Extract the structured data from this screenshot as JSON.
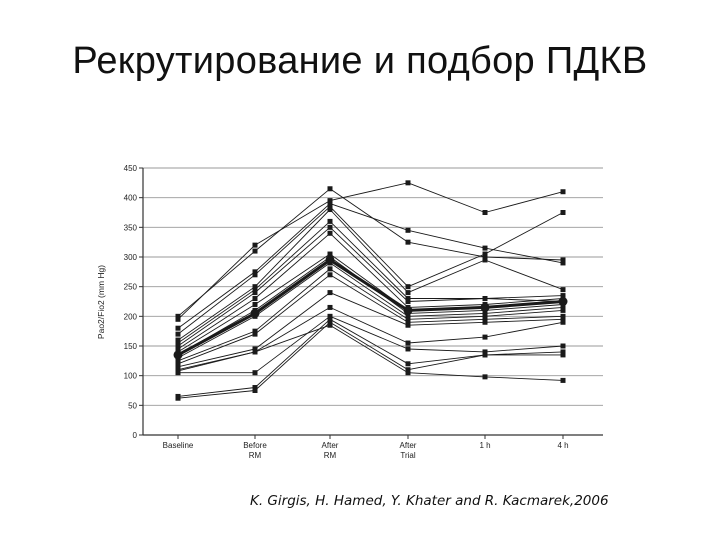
{
  "slide": {
    "title": "Рекрутирование и подбор ПДКВ",
    "citation": "K. Girgis, H. Hamed, Y. Khater and R. Kacmarek,2006"
  },
  "chart_data": {
    "type": "line",
    "ylabel": "Pao2/Fio2 (mm Hg)",
    "xlabel": "",
    "categories": [
      [
        "Baseline"
      ],
      [
        "Before",
        "RM"
      ],
      [
        "After",
        "RM"
      ],
      [
        "After",
        "Trial"
      ],
      [
        "1 h"
      ],
      [
        "4 h"
      ]
    ],
    "ylim": [
      0,
      450
    ],
    "yticks": [
      0,
      50,
      100,
      150,
      200,
      250,
      300,
      350,
      400,
      450
    ],
    "grid": true,
    "colors": {
      "line": "#1a1a1a",
      "grid": "#999999",
      "axis": "#333333"
    },
    "series": [
      {
        "values": [
          200,
          310,
          415,
          325,
          300,
          295
        ]
      },
      {
        "values": [
          195,
          320,
          395,
          425,
          375,
          410
        ]
      },
      {
        "values": [
          180,
          275,
          390,
          345,
          315,
          290
        ]
      },
      {
        "values": [
          170,
          270,
          385,
          250,
          305,
          375
        ]
      },
      {
        "values": [
          160,
          250,
          380,
          240,
          295,
          245
        ]
      },
      {
        "values": [
          155,
          245,
          360,
          230,
          230,
          235
        ]
      },
      {
        "values": [
          150,
          240,
          350,
          225,
          230,
          225
        ]
      },
      {
        "values": [
          145,
          230,
          340,
          215,
          220,
          230
        ]
      },
      {
        "values": [
          140,
          220,
          305,
          210,
          215,
          225
        ]
      },
      {
        "values": [
          135,
          210,
          300,
          205,
          210,
          220
        ]
      },
      {
        "values": [
          130,
          200,
          290,
          200,
          205,
          215
        ]
      },
      {
        "values": [
          125,
          175,
          280,
          195,
          200,
          210
        ]
      },
      {
        "values": [
          120,
          170,
          270,
          190,
          195,
          200
        ]
      },
      {
        "values": [
          115,
          145,
          240,
          185,
          190,
          195
        ]
      },
      {
        "values": [
          110,
          140,
          215,
          155,
          165,
          190
        ]
      },
      {
        "values": [
          105,
          105,
          200,
          145,
          140,
          150
        ]
      },
      {
        "values": [
          65,
          80,
          195,
          120,
          135,
          140
        ]
      },
      {
        "values": [
          62,
          75,
          190,
          110,
          135,
          135
        ]
      },
      {
        "values": [
          108,
          140,
          185,
          105,
          98,
          92
        ]
      },
      {
        "values": [
          135,
          205,
          295,
          210,
          215,
          225
        ],
        "bold": true
      }
    ]
  }
}
